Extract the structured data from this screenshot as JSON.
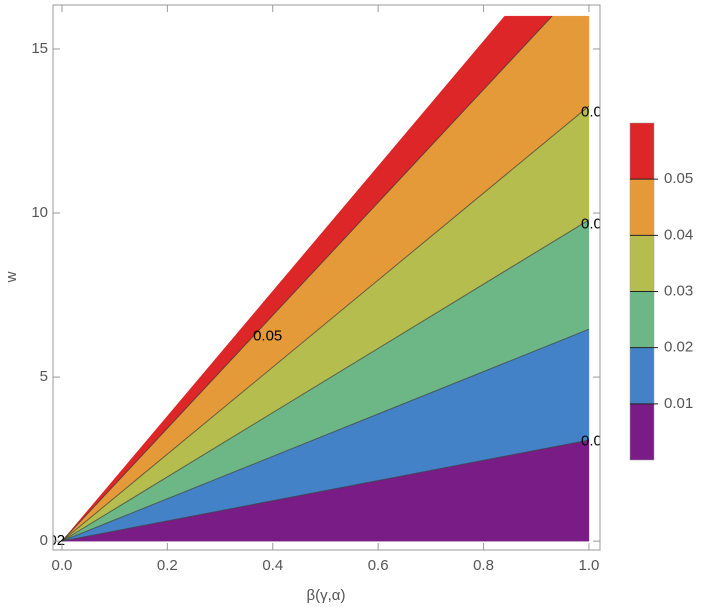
{
  "chart_data": {
    "type": "contour",
    "x_label": "β(γ,α)",
    "y_label": "w",
    "xlim": [
      -0.017,
      1.021
    ],
    "ylim": [
      -0.27,
      16.34
    ],
    "xticks": [
      {
        "value": 0,
        "label": "0.0"
      },
      {
        "value": 0.2,
        "label": "0.2"
      },
      {
        "value": 0.4,
        "label": "0.4"
      },
      {
        "value": 0.6,
        "label": "0.6"
      },
      {
        "value": 0.8,
        "label": "0.8"
      },
      {
        "value": 1,
        "label": "1.0"
      }
    ],
    "yticks": [
      0,
      5,
      10,
      15
    ],
    "domain_edge": {
      "x": [
        0,
        1,
        1,
        0.84
      ],
      "y": [
        0,
        0,
        16,
        16
      ]
    },
    "contours": [
      {
        "level": 0.01,
        "x": [
          0,
          1
        ],
        "y": [
          0,
          3.08
        ]
      },
      {
        "level": 0.02,
        "x": [
          0,
          1
        ],
        "y": [
          0,
          6.46
        ]
      },
      {
        "level": 0.03,
        "x": [
          0,
          1
        ],
        "y": [
          0,
          9.79
        ]
      },
      {
        "level": 0.04,
        "x": [
          0,
          1
        ],
        "y": [
          0,
          13.26
        ]
      },
      {
        "level": 0.05,
        "x": [
          0,
          0.93
        ],
        "y": [
          0,
          16
        ]
      }
    ],
    "band_colors": [
      "#7a1c85",
      "#4482c8",
      "#6db686",
      "#b5bd4f",
      "#e59a3a",
      "#dc2627"
    ],
    "colorbar": {
      "lim": [
        0,
        0.06
      ],
      "ticks": [
        0.01,
        0.02,
        0.03,
        0.04,
        0.05
      ]
    }
  }
}
